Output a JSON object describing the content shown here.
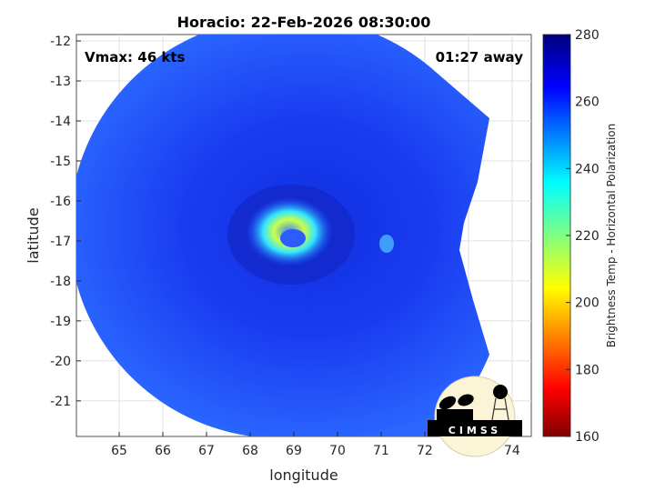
{
  "chart_data": {
    "type": "heatmap",
    "title": "Horacio: 22-Feb-2026 08:30:00",
    "xlabel": "longitude",
    "ylabel": "latitude",
    "xlim": [
      64.02,
      74.44
    ],
    "ylim": [
      -21.89,
      -11.84
    ],
    "xticks": [
      65,
      66,
      67,
      68,
      69,
      70,
      71,
      72,
      73,
      74
    ],
    "yticks": [
      -12,
      -13,
      -14,
      -15,
      -16,
      -17,
      -18,
      -19,
      -20,
      -21
    ],
    "grid": true,
    "annotations": {
      "vmax": "Vmax: 46 kts",
      "away": "01:27 away"
    },
    "colorbar": {
      "label": "Brightness Temp - Horizontal Polarization",
      "range": [
        160,
        280
      ],
      "ticks": [
        160,
        180,
        200,
        220,
        240,
        260,
        280
      ],
      "colormap": "jet"
    },
    "storm_center": {
      "lon": 69.0,
      "lat": -16.8
    }
  },
  "logo": {
    "text": "CIMSS"
  }
}
